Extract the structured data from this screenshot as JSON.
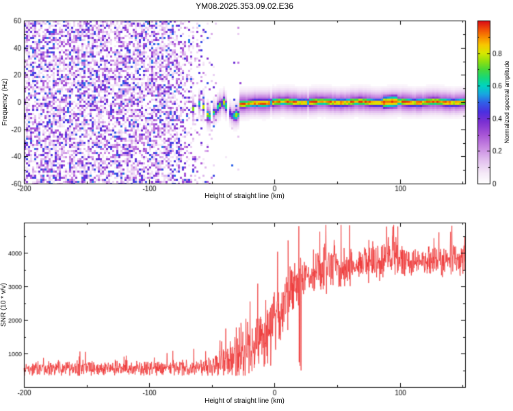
{
  "chart_data": [
    {
      "type": "heatmap",
      "title": "YM08.2025.353.09.02.E36",
      "xlabel": "Height of straight line (km)",
      "ylabel": "Frequency (Hz)",
      "xlim": [
        -200,
        152
      ],
      "ylim": [
        -60,
        60
      ],
      "xticks": [
        -200,
        -100,
        0,
        100
      ],
      "yticks": [
        -60,
        -40,
        -20,
        0,
        20,
        40,
        60
      ],
      "grid": false,
      "colorbar": {
        "label": "Normalized spectral amplitude",
        "ticks": [
          0,
          0.2,
          0.4,
          0.6,
          0.8
        ],
        "range": [
          0,
          1
        ]
      },
      "colormap": [
        [
          0.0,
          "#ffffff"
        ],
        [
          0.06,
          "#f6ebf8"
        ],
        [
          0.14,
          "#e3c1ef"
        ],
        [
          0.22,
          "#c98ae2"
        ],
        [
          0.3,
          "#a855d6"
        ],
        [
          0.38,
          "#7a2fd2"
        ],
        [
          0.44,
          "#4b2fe0"
        ],
        [
          0.5,
          "#2f62e8"
        ],
        [
          0.55,
          "#18a8e0"
        ],
        [
          0.6,
          "#00d4c0"
        ],
        [
          0.65,
          "#18d878"
        ],
        [
          0.7,
          "#48d838"
        ],
        [
          0.75,
          "#90e010"
        ],
        [
          0.8,
          "#d8e800"
        ],
        [
          0.85,
          "#f8c800"
        ],
        [
          0.9,
          "#f88800"
        ],
        [
          0.95,
          "#f04808"
        ],
        [
          1.0,
          "#d80818"
        ]
      ],
      "features": {
        "noise_field": {
          "x_range": [
            -200,
            -45
          ],
          "fade_start": -85,
          "amplitude_range": [
            0.05,
            0.52
          ],
          "description": "random purple speckle noise over all frequencies, fading out toward -45 km"
        },
        "echo_trace": {
          "x_range": [
            -66,
            152
          ],
          "center_frequency_hz": 0,
          "core_halfwidth_hz": 4,
          "fringe_halfwidth_hz": 10,
          "peak_amplitude": 1.0,
          "disturbed_x_range": [
            -66,
            -28
          ],
          "disturbed_min_freq_hz": -12,
          "description": "narrow horizontal high-amplitude band at 0 Hz with red core dots; wandering patchy blobs between -66 and -28 km dipping to about -12 Hz"
        }
      }
    },
    {
      "type": "line",
      "xlabel": "Height of straight line (km)",
      "ylabel": "SNR (10 * v/v)",
      "xlim": [
        -200,
        152
      ],
      "ylim": [
        0,
        4900
      ],
      "xticks": [
        -200,
        -100,
        0,
        100
      ],
      "yticks": [
        1000,
        2000,
        3000,
        4000
      ],
      "grid": false,
      "line_color": "#ee3333",
      "series": [
        {
          "name": "SNR",
          "envelope_x": [
            -200,
            -120,
            -70,
            -55,
            -45,
            -35,
            -28,
            -20,
            -12,
            -5,
            0,
            8,
            15,
            25,
            35,
            45,
            55,
            70,
            85,
            95,
            105,
            120,
            135,
            152
          ],
          "envelope_mean": [
            550,
            560,
            560,
            600,
            680,
            820,
            980,
            1100,
            1400,
            1700,
            2000,
            2500,
            3000,
            3350,
            3500,
            3650,
            3550,
            3650,
            3800,
            3900,
            3700,
            3800,
            3750,
            3900
          ],
          "envelope_spread": [
            270,
            270,
            290,
            340,
            430,
            650,
            1300,
            900,
            1100,
            1200,
            1200,
            1100,
            900,
            800,
            700,
            1000,
            650,
            650,
            800,
            700,
            550,
            550,
            500,
            650
          ]
        }
      ]
    }
  ]
}
